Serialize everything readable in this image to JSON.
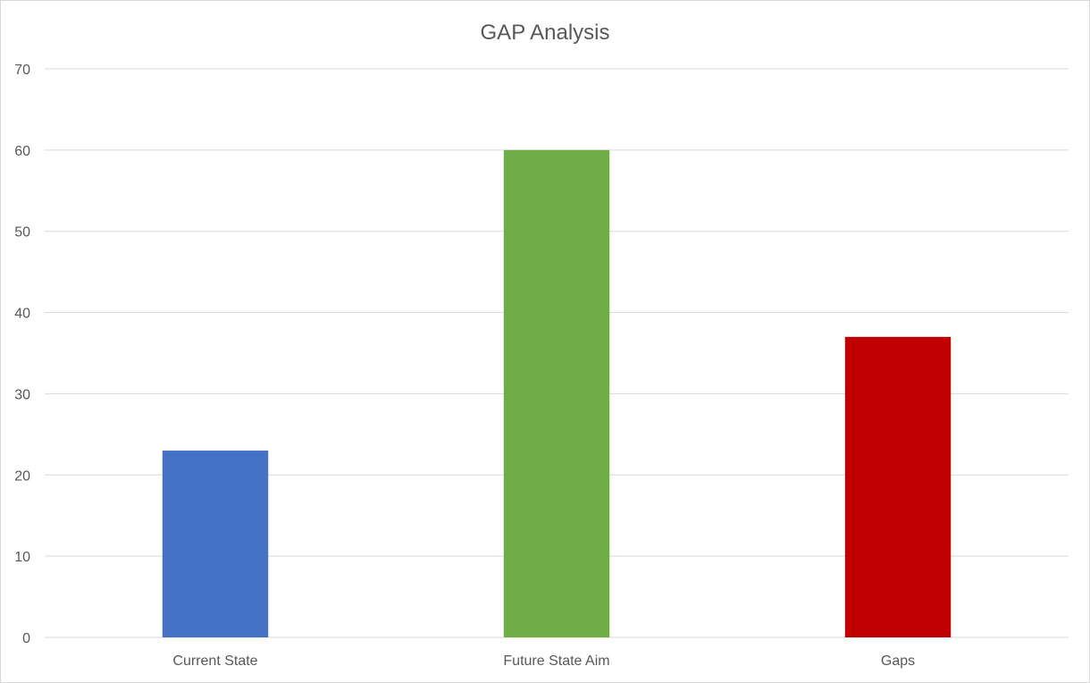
{
  "chart_data": {
    "type": "bar",
    "title": "GAP Analysis",
    "xlabel": "",
    "ylabel": "",
    "categories": [
      "Current State",
      "Future State Aim",
      "Gaps"
    ],
    "values": [
      23,
      60,
      37
    ],
    "bar_colors": [
      "#4472c4",
      "#70ad47",
      "#c00000"
    ],
    "ylim": [
      0,
      70
    ],
    "yticks": [
      0,
      10,
      20,
      30,
      40,
      50,
      60,
      70
    ],
    "grid": true,
    "legend": "none"
  }
}
